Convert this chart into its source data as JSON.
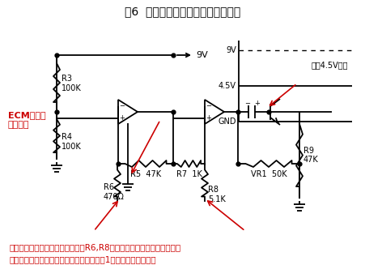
{
  "title": "図6  直流バイアスに対する等価回路",
  "title_color": "#000000",
  "title_fontsize": 10,
  "ecm_label": "ECMからの\n信号無し",
  "ecm_color": "#cc0000",
  "bottom_text1": "コンデンサは直流を通さないのでR6,R8の下側はオープンと見なせる。",
  "bottom_text2": "これにより、直流（バイアス）に対しては1倍のアンプになる。",
  "bottom_color": "#cc0000",
  "component_color": "#000000",
  "label_9V": "9V",
  "label_45V": "4.5V",
  "label_GND": "GND",
  "label_DC": "直流4.5Vのみ",
  "R3_label": "R3\n100K",
  "R4_label": "R4\n100K",
  "R5_label": "R5  47K",
  "R6_label": "R6\n470Ω",
  "R7_label": "R7  1K",
  "R8_label": "R8\n5.1K",
  "R9_label": "R9\n47K",
  "VR1_label": "VR1  50K",
  "arrow_color": "#cc0000",
  "bg_color": "#ffffff"
}
